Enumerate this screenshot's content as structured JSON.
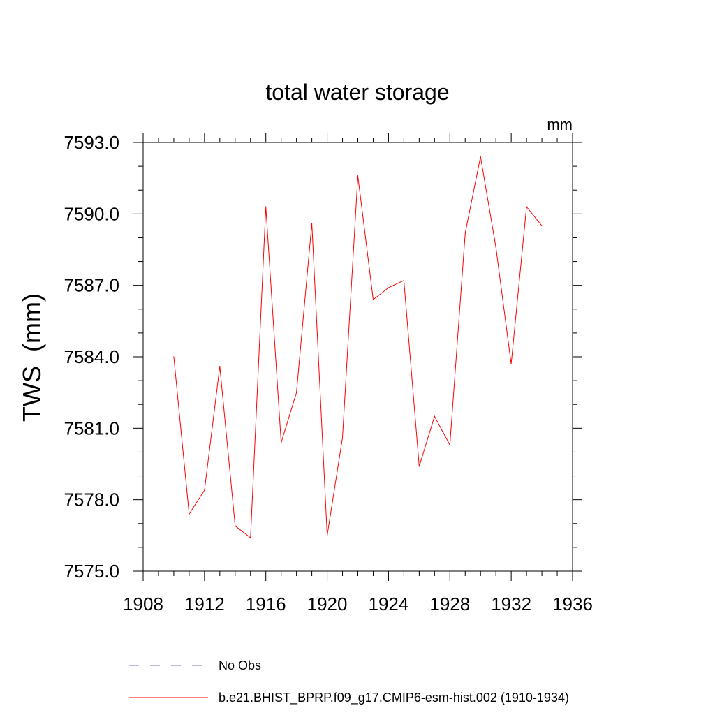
{
  "chart_data": {
    "type": "line",
    "title": "total water storage",
    "units_label": "mm",
    "xlabel": "",
    "ylabel": "TWS  (mm)",
    "xlim": [
      1908,
      1936
    ],
    "ylim": [
      7575.0,
      7593.0
    ],
    "x_ticks": [
      1908,
      1912,
      1916,
      1920,
      1924,
      1928,
      1932,
      1936
    ],
    "x_tick_labels": [
      "1908",
      "1912",
      "1916",
      "1920",
      "1924",
      "1928",
      "1932",
      "1936"
    ],
    "y_ticks": [
      7575.0,
      7578.0,
      7581.0,
      7584.0,
      7587.0,
      7590.0,
      7593.0
    ],
    "y_tick_labels": [
      "7575.0",
      "7578.0",
      "7581.0",
      "7584.0",
      "7587.0",
      "7590.0",
      "7593.0"
    ],
    "grid": false,
    "legend_position": "bottom",
    "series": [
      {
        "name": "b.e21.BHIST_BPRP.f09_g17.CMIP6-esm-hist.002 (1910-1934)",
        "color": "#ff0000",
        "style": "solid",
        "x": [
          1910,
          1911,
          1912,
          1913,
          1914,
          1915,
          1916,
          1917,
          1918,
          1919,
          1920,
          1921,
          1922,
          1923,
          1924,
          1925,
          1926,
          1927,
          1928,
          1929,
          1930,
          1931,
          1932,
          1933,
          1934
        ],
        "values": [
          7584.0,
          7577.4,
          7578.4,
          7583.6,
          7576.9,
          7576.4,
          7590.3,
          7580.4,
          7582.5,
          7589.6,
          7576.5,
          7580.6,
          7591.6,
          7586.4,
          7586.9,
          7587.2,
          7579.4,
          7581.5,
          7580.3,
          7589.2,
          7592.4,
          7588.6,
          7583.7,
          7590.3,
          7589.5
        ]
      }
    ],
    "legend": [
      {
        "label": "No Obs",
        "color": "#7b6fcf",
        "style": "dashed"
      },
      {
        "label": "b.e21.BHIST_BPRP.f09_g17.CMIP6-esm-hist.002 (1910-1934)",
        "color": "#ff0000",
        "style": "solid"
      }
    ]
  }
}
